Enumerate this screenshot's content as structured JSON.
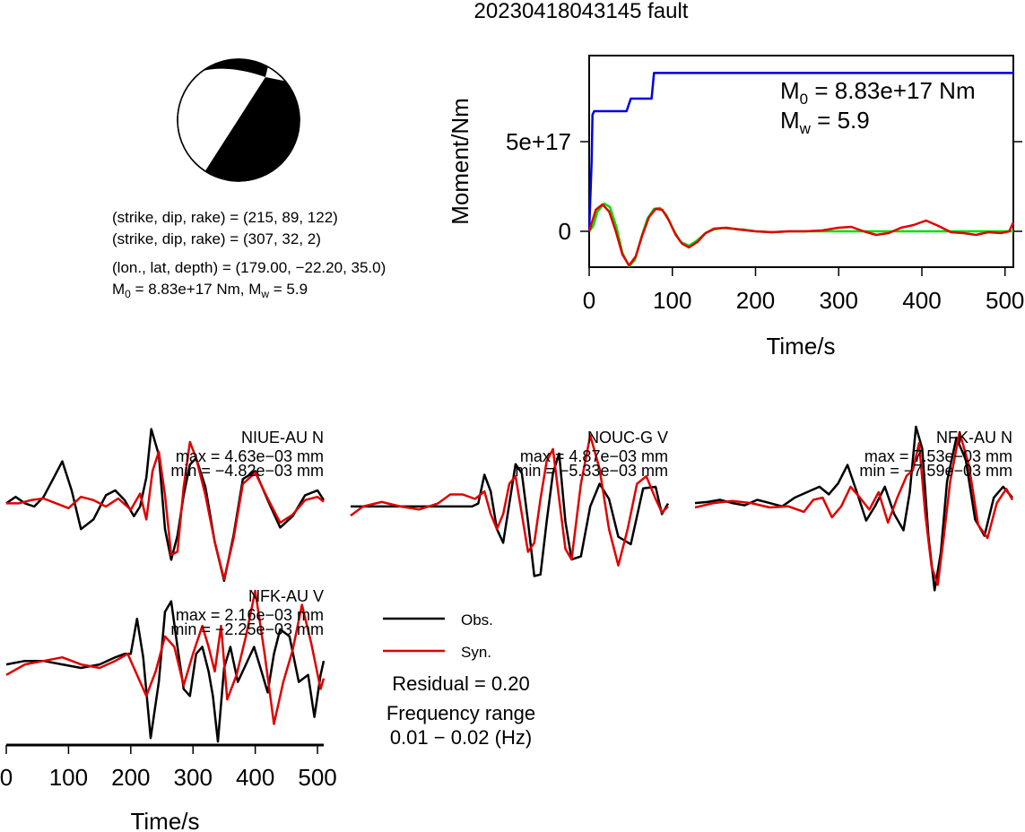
{
  "title": "20230418043145 fault",
  "mechanism": {
    "lines": [
      "(strike, dip, rake) = (215, 89, 122)",
      "(strike, dip, rake) = (307, 32, 2)",
      "(lon., lat, depth) = (179.00, −22.20, 35.0)"
    ],
    "m0_prefix": "M",
    "m0_sub": "0",
    "m0_value": " = 8.83e+17 Nm, M",
    "mw_sub": "w",
    "mw_value": " = 5.9"
  },
  "moment_panel": {
    "m0_prefix": "M",
    "m0_sub": "0",
    "m0_text": " = 8.83e+17 Nm",
    "mw_prefix": "M",
    "mw_sub": "w",
    "mw_text": " = 5.9"
  },
  "colors": {
    "observed": "#000000",
    "synthetic": "#e00000",
    "moment": "#0000e0",
    "mrf_green": "#00dd00"
  },
  "chart_data": [
    {
      "type": "line",
      "panel": "moment",
      "ylabel": "Moment/Nm",
      "xlabel": "Time/s",
      "xlim": [
        0,
        510
      ],
      "x_ticks": [
        "0",
        "100",
        "200",
        "300",
        "400",
        "500"
      ],
      "x_tick_values": [
        0,
        100,
        200,
        300,
        400,
        500
      ],
      "y_ticks": [
        "0",
        "5e+17"
      ],
      "y_tick_values": [
        0,
        5e+17
      ],
      "ylim": [
        -2e+17,
        9.8e+17
      ],
      "series": [
        {
          "key": "moment",
          "x": [
            0,
            3,
            4,
            6,
            45,
            50,
            75,
            78,
            510
          ],
          "y": [
            0,
            4e+17,
            6.5e+17,
            6.7e+17,
            6.7e+17,
            7.4e+17,
            7.4e+17,
            8.83e+17,
            8.83e+17
          ]
        },
        {
          "key": "mrf_green",
          "x": [
            0,
            5,
            10,
            18,
            25,
            33,
            40,
            48,
            55,
            63,
            70,
            78,
            85,
            93,
            100,
            110,
            120,
            130,
            140,
            150,
            160,
            170,
            185,
            200,
            220,
            240,
            260,
            300,
            350,
            400,
            450,
            510
          ],
          "y": [
            0,
            3e+16,
            1.1e+17,
            1.55e+17,
            1.35e+17,
            2e+16,
            -1.2e+17,
            -1.95e+17,
            -1.6e+17,
            -3e+16,
            7e+16,
            1.25e+17,
            1.3e+17,
            9e+16,
            2e+16,
            -6e+16,
            -8e+16,
            -5e+16,
            -1e+16,
            1e+16,
            1.8e+16,
            1.5e+16,
            1e+16,
            0,
            -5000000000000000.0,
            0,
            0,
            0,
            0,
            0,
            0,
            0
          ]
        },
        {
          "key": "synthetic",
          "x": [
            0,
            8,
            16,
            24,
            32,
            40,
            48,
            56,
            64,
            72,
            80,
            88,
            96,
            104,
            112,
            120,
            130,
            140,
            150,
            165,
            180,
            200,
            220,
            240,
            260,
            280,
            300,
            315,
            330,
            345,
            360,
            375,
            390,
            405,
            420,
            435,
            450,
            465,
            480,
            495,
            505,
            510
          ],
          "y": [
            0,
            1.2e+17,
            1.5e+17,
            1.1e+17,
            0,
            -1.3e+17,
            -1.9e+17,
            -1.4e+17,
            -2e+16,
            8e+16,
            1.25e+17,
            1.2e+17,
            6e+16,
            -2e+16,
            -7e+16,
            -9e+16,
            -6e+16,
            -1e+16,
            1.5e+16,
            2e+16,
            1e+16,
            0,
            -5000000000000000.0,
            0,
            0,
            5000000000000000.0,
            2e+16,
            2.5e+16,
            0,
            -2e+16,
            -1e+16,
            2e+16,
            3.5e+16,
            6e+16,
            3e+16,
            -5000000000000000.0,
            -1e+16,
            -2e+16,
            -5000000000000000.0,
            -1e+16,
            0,
            5e+16
          ]
        }
      ]
    },
    {
      "type": "line",
      "panel": "station",
      "station": "NIUE-AU N",
      "max_label": "max = 4.63e−03 mm",
      "min_label": "min = −4.82e−03 mm",
      "ylim": [
        -5.2,
        4.8
      ],
      "xlim": [
        0,
        510
      ],
      "series": [
        {
          "key": "observed",
          "x": [
            0,
            15,
            30,
            45,
            60,
            75,
            90,
            105,
            120,
            140,
            160,
            175,
            190,
            205,
            215,
            225,
            233,
            245,
            255,
            265,
            275,
            285,
            295,
            305,
            320,
            335,
            350,
            365,
            380,
            400,
            420,
            440,
            460,
            480,
            500,
            510
          ],
          "y": [
            0,
            0.4,
            0,
            -0.2,
            0.4,
            1.5,
            2.6,
            0.8,
            -1.6,
            -1.0,
            0.5,
            0.8,
            0.2,
            -0.8,
            -0.2,
            1.6,
            4.6,
            3.0,
            -1.6,
            -3.5,
            -2.0,
            0.5,
            2.4,
            2.8,
            1.0,
            -2.4,
            -4.8,
            -2.0,
            1.5,
            2.0,
            0.2,
            -1.5,
            -0.8,
            0.5,
            0.8,
            0.2
          ]
        },
        {
          "key": "synthetic",
          "x": [
            0,
            20,
            40,
            60,
            80,
            100,
            120,
            140,
            160,
            180,
            200,
            215,
            225,
            235,
            245,
            255,
            265,
            275,
            285,
            295,
            305,
            320,
            335,
            350,
            365,
            380,
            400,
            420,
            440,
            460,
            480,
            500,
            510
          ],
          "y": [
            0,
            0,
            0.2,
            0.3,
            0,
            -0.3,
            0.4,
            0.2,
            -0.2,
            0.3,
            -0.4,
            0.6,
            -1.0,
            2.0,
            3.2,
            0.5,
            -3.2,
            -3.0,
            1.0,
            3.8,
            2.8,
            0.5,
            -2.4,
            -4.7,
            -2.2,
            1.2,
            1.9,
            0.3,
            -1.2,
            -0.7,
            0.2,
            0.4,
            0.1
          ]
        }
      ]
    },
    {
      "type": "line",
      "panel": "station",
      "station": "NOUC-G V",
      "max_label": "max = 4.87e−03 mm",
      "min_label": "min = −5.33e−03 mm",
      "ylim": [
        -5.4,
        4.8
      ],
      "xlim": [
        0,
        510
      ],
      "series": [
        {
          "key": "observed",
          "x": [
            0,
            50,
            100,
            150,
            180,
            195,
            205,
            215,
            225,
            235,
            245,
            255,
            265,
            275,
            285,
            295,
            305,
            315,
            325,
            335,
            345,
            355,
            370,
            385,
            400,
            415,
            430,
            450,
            470,
            490,
            500,
            510
          ],
          "y": [
            0,
            0,
            0,
            0,
            0,
            0,
            0.2,
            2.1,
            1.0,
            -1.5,
            -2.4,
            0.2,
            2.8,
            2.2,
            -1.0,
            -4.6,
            -4.5,
            -1.0,
            2.2,
            3.5,
            -1.0,
            -3.5,
            -3.3,
            0,
            1.5,
            0.5,
            -2.0,
            -2.5,
            1.2,
            1.3,
            -0.5,
            0.2
          ]
        },
        {
          "key": "synthetic",
          "x": [
            0,
            20,
            50,
            80,
            110,
            140,
            160,
            180,
            200,
            215,
            225,
            235,
            245,
            255,
            265,
            275,
            285,
            295,
            305,
            315,
            325,
            335,
            345,
            355,
            370,
            385,
            400,
            415,
            430,
            445,
            460,
            475,
            490,
            500,
            510
          ],
          "y": [
            -0.6,
            0,
            0.3,
            0,
            -0.2,
            0.2,
            0.8,
            0.8,
            0.5,
            1.0,
            -0.5,
            -1.5,
            -0.5,
            1.5,
            2.0,
            -0.5,
            -3.0,
            -2.4,
            0.5,
            3.0,
            3.8,
            0.5,
            -2.8,
            -3.5,
            1.5,
            4.7,
            2.5,
            -1.5,
            -3.9,
            -1.5,
            1.5,
            2.0,
            0.5,
            -0.4,
            0
          ]
        }
      ]
    },
    {
      "type": "line",
      "panel": "station",
      "station": "NFK-AU N",
      "max_label": "max = 7.53e−03 mm",
      "min_label": "min = −7.59e−03 mm",
      "ylim": [
        -7.8,
        7.0
      ],
      "xlim": [
        0,
        510
      ],
      "series": [
        {
          "key": "observed",
          "x": [
            0,
            20,
            40,
            60,
            80,
            100,
            120,
            140,
            160,
            180,
            200,
            215,
            230,
            245,
            260,
            275,
            290,
            305,
            320,
            335,
            345,
            355,
            365,
            375,
            385,
            395,
            405,
            420,
            435,
            450,
            465,
            480,
            495,
            510
          ],
          "y": [
            0,
            0.1,
            0.3,
            0,
            -0.2,
            0.3,
            0,
            -0.3,
            0.5,
            1.0,
            1.5,
            0.8,
            1.8,
            3.5,
            1.0,
            -1.6,
            -0.2,
            1.5,
            -1.0,
            -2.5,
            1.0,
            7.0,
            5.0,
            -3.0,
            -8.0,
            -4.5,
            2.0,
            6.0,
            4.0,
            -1.5,
            -3.0,
            0.5,
            1.5,
            0.5
          ]
        },
        {
          "key": "synthetic",
          "x": [
            0,
            30,
            60,
            90,
            120,
            150,
            175,
            190,
            205,
            220,
            235,
            250,
            265,
            280,
            295,
            310,
            325,
            340,
            350,
            360,
            370,
            380,
            390,
            400,
            410,
            425,
            440,
            455,
            470,
            485,
            500,
            510
          ],
          "y": [
            -0.4,
            0,
            0.2,
            0,
            -0.4,
            -0.3,
            -0.8,
            0.3,
            0.5,
            -1.3,
            -0.3,
            1.5,
            0.5,
            -0.6,
            1.0,
            -1.8,
            0.5,
            2.5,
            3.0,
            5.5,
            -1.0,
            -5.8,
            -7.5,
            -3.0,
            2.0,
            6.5,
            3.5,
            -2.0,
            -3.2,
            0.0,
            1.3,
            0.3
          ]
        }
      ]
    },
    {
      "type": "line",
      "panel": "station",
      "station": "NFK-AU V",
      "max_label": "max = 2.16e−03 mm",
      "min_label": "min = −2.25e−03 mm",
      "ylim": [
        -2.3,
        2.15
      ],
      "xlim": [
        0,
        510
      ],
      "series": [
        {
          "key": "observed",
          "x": [
            0,
            30,
            60,
            90,
            120,
            150,
            175,
            190,
            200,
            210,
            220,
            232,
            245,
            255,
            265,
            275,
            285,
            295,
            305,
            315,
            325,
            332,
            340,
            350,
            360,
            372,
            385,
            398,
            410,
            420,
            430,
            440,
            455,
            470,
            485,
            495,
            505,
            510
          ],
          "y": [
            0,
            0.1,
            0.1,
            0,
            -0.1,
            0.0,
            0.2,
            0.3,
            0.3,
            1.3,
            0.2,
            -2.1,
            -0.5,
            1.5,
            1.8,
            0.5,
            -0.7,
            -0.9,
            0.3,
            0.5,
            -0.2,
            -0.9,
            -2.2,
            -0.1,
            0.5,
            -0.5,
            0.0,
            0.5,
            -0.2,
            -0.8,
            0.3,
            1.0,
            0.8,
            -0.5,
            -0.3,
            -1.5,
            -0.3,
            0.1
          ]
        },
        {
          "key": "synthetic",
          "x": [
            0,
            30,
            60,
            90,
            120,
            150,
            175,
            195,
            210,
            225,
            240,
            255,
            270,
            285,
            300,
            315,
            325,
            335,
            345,
            355,
            370,
            385,
            400,
            415,
            430,
            445,
            460,
            475,
            490,
            505,
            510
          ],
          "y": [
            -0.3,
            0.0,
            0.1,
            0.2,
            0.0,
            -0.1,
            0.1,
            0.3,
            -0.3,
            -0.9,
            -0.2,
            0.8,
            0.5,
            -0.6,
            0.3,
            1.1,
            0.5,
            -0.2,
            1.1,
            -1.0,
            -0.3,
            0.8,
            2.1,
            0.3,
            -1.7,
            -0.5,
            0.4,
            1.7,
            0.6,
            -0.7,
            -0.4
          ]
        }
      ]
    }
  ],
  "bottom_axis": {
    "xlabel": "Time/s",
    "ticks": [
      "0",
      "100",
      "200",
      "300",
      "400",
      "500"
    ],
    "tick_values": [
      0,
      100,
      200,
      300,
      400,
      500
    ]
  },
  "legend": {
    "observed": "Obs.",
    "synthetic": "Syn."
  },
  "residual": "Residual = 0.20",
  "frequency_label": "Frequency range",
  "frequency_value": "0.01 − 0.02 (Hz)"
}
